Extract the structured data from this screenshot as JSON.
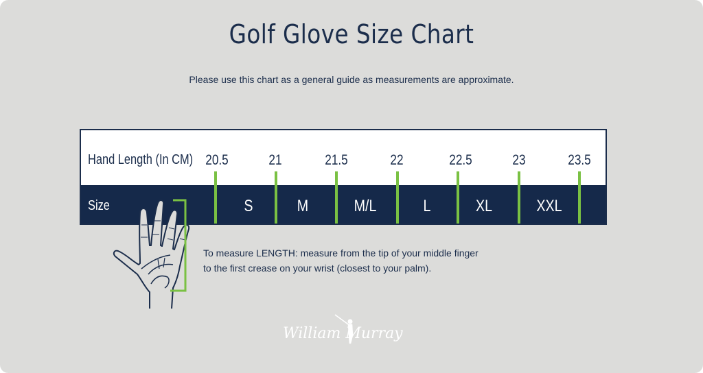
{
  "title": "Golf Glove Size Chart",
  "subtitle": "Please use this chart as a general guide as measurements are approximate.",
  "chart": {
    "row_label_length": "Hand Length (In CM)",
    "row_label_size": "Size",
    "lengths": [
      "20.5",
      "21",
      "21.5",
      "22",
      "22.5",
      "23",
      "23.5"
    ],
    "sizes": [
      "S",
      "M",
      "M/L",
      "L",
      "XL",
      "XXL"
    ]
  },
  "instruction": {
    "line1": "To measure LENGTH: measure from the tip of your middle finger",
    "line2": "to the first crease on your wrist (closest to your palm)."
  },
  "brand": {
    "logo_text": "William Murray"
  },
  "colors": {
    "background": "#dcdcda",
    "navy": "#15294a",
    "accent_green": "#7ac143",
    "text": "#1b2d4b"
  },
  "icons": {
    "hand": "hand-outline-icon",
    "logo_figure": "golfer-silhouette-icon"
  }
}
